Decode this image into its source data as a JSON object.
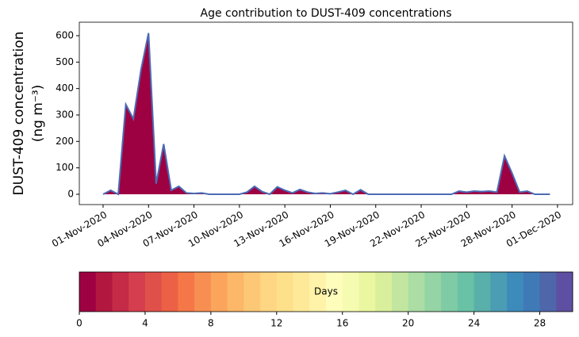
{
  "chart_data": [
    {
      "type": "area",
      "title": "Age contribution to DUST-409 concentrations",
      "ylabel": [
        "DUST-409 concentration",
        "(ng m⁻³)"
      ],
      "x": [
        0,
        0.5,
        1,
        1.5,
        2,
        2.5,
        3,
        3.5,
        4,
        4.5,
        5,
        5.5,
        6,
        6.5,
        7,
        7.5,
        8,
        8.5,
        9,
        9.5,
        10,
        10.5,
        11,
        11.5,
        12,
        12.5,
        13,
        13.5,
        14,
        14.5,
        15,
        15.5,
        16,
        16.5,
        17,
        17.5,
        18,
        18.5,
        19,
        19.5,
        20,
        20.5,
        21,
        21.5,
        22,
        22.5,
        23,
        23.5,
        24,
        24.5,
        25,
        25.5,
        26,
        26.5,
        27,
        27.5,
        28,
        28.5,
        29,
        29.5
      ],
      "series": [
        {
          "color": "#9e0142",
          "line_color": "#4c6bb5",
          "values": [
            0,
            15,
            0,
            340,
            285,
            470,
            610,
            40,
            190,
            15,
            30,
            5,
            3,
            5,
            0,
            0,
            0,
            0,
            0,
            8,
            30,
            10,
            0,
            28,
            15,
            5,
            18,
            8,
            3,
            5,
            2,
            8,
            15,
            0,
            17,
            0,
            0,
            0,
            0,
            0,
            0,
            0,
            0,
            0,
            0,
            0,
            0,
            12,
            8,
            12,
            10,
            12,
            8,
            145,
            80,
            8,
            12,
            0,
            0,
            0
          ]
        }
      ],
      "xlim": [
        -1.57,
        31.0
      ],
      "xticks": [
        {
          "value": 0,
          "label": "01-Nov-2020"
        },
        {
          "value": 3,
          "label": "04-Nov-2020"
        },
        {
          "value": 6,
          "label": "07-Nov-2020"
        },
        {
          "value": 9,
          "label": "10-Nov-2020"
        },
        {
          "value": 12,
          "label": "13-Nov-2020"
        },
        {
          "value": 15,
          "label": "16-Nov-2020"
        },
        {
          "value": 18,
          "label": "19-Nov-2020"
        },
        {
          "value": 21,
          "label": "22-Nov-2020"
        },
        {
          "value": 24,
          "label": "25-Nov-2020"
        },
        {
          "value": 27,
          "label": "28-Nov-2020"
        },
        {
          "value": 30,
          "label": "01-Dec-2020"
        }
      ],
      "ylim": [
        -39,
        651
      ],
      "yticks": [
        0,
        100,
        200,
        300,
        400,
        500,
        600
      ]
    },
    {
      "type": "colorbar",
      "label": "Days",
      "xlim": [
        0,
        30
      ],
      "xticks": [
        0,
        4,
        8,
        12,
        16,
        20,
        24,
        28
      ],
      "colors": [
        "#9e0142",
        "#b2173f",
        "#c52a47",
        "#d53e4f",
        "#e0504a",
        "#ec6146",
        "#f57748",
        "#f88f52",
        "#fba55c",
        "#fdb768",
        "#fdc876",
        "#fed684",
        "#fee08b",
        "#fee999",
        "#fff3aa",
        "#fefdbc",
        "#f6fbb2",
        "#eaf7a0",
        "#d9ef9b",
        "#c2e69f",
        "#abdda4",
        "#95d4a4",
        "#7fcba5",
        "#69c2a5",
        "#59b0aa",
        "#4a9db3",
        "#3d8bbb",
        "#3f7ab6",
        "#4f66ab",
        "#5e4fa2"
      ]
    }
  ]
}
